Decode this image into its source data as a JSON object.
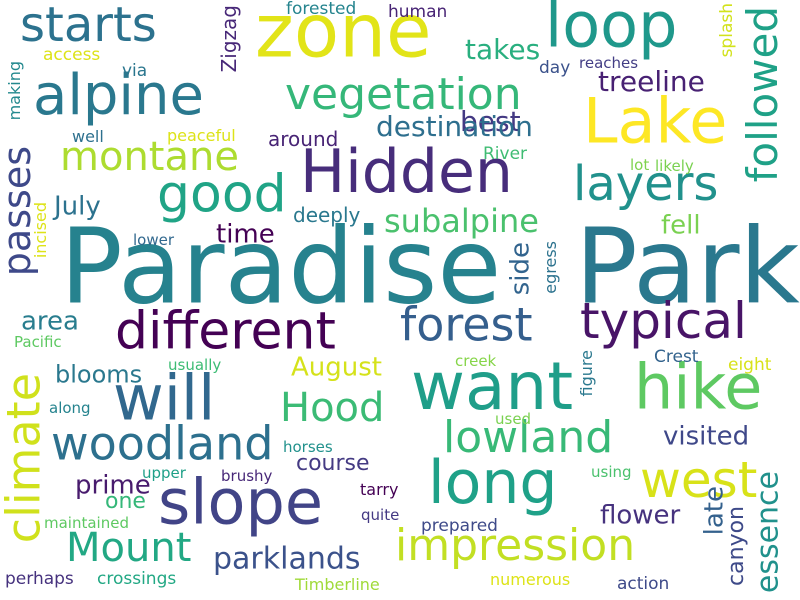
{
  "words": [
    {
      "text": "Paradise",
      "color": "#26828e"
    },
    {
      "text": "Park",
      "color": "#2a788e"
    },
    {
      "text": "zone",
      "color": "#e2e418"
    },
    {
      "text": "loop",
      "color": "#1f988b"
    },
    {
      "text": "alpine",
      "color": "#2a788e"
    },
    {
      "text": "Lake",
      "color": "#fde725"
    },
    {
      "text": "Hidden",
      "color": "#472d7b"
    },
    {
      "text": "starts",
      "color": "#2c728e"
    },
    {
      "text": "vegetation",
      "color": "#35b779"
    },
    {
      "text": "followed",
      "color": "#1fa187"
    },
    {
      "text": "montane",
      "color": "#addc30"
    },
    {
      "text": "good",
      "color": "#20a486"
    },
    {
      "text": "layers",
      "color": "#21918c"
    },
    {
      "text": "passes",
      "color": "#3e4989"
    },
    {
      "text": "different",
      "color": "#440154"
    },
    {
      "text": "typical",
      "color": "#481467"
    },
    {
      "text": "forest",
      "color": "#355f8d"
    },
    {
      "text": "want",
      "color": "#1f9e89"
    },
    {
      "text": "hike",
      "color": "#5ec962"
    },
    {
      "text": "will",
      "color": "#31688e"
    },
    {
      "text": "climate",
      "color": "#d0e11c"
    },
    {
      "text": "Hood",
      "color": "#3bbb75"
    },
    {
      "text": "lowland",
      "color": "#38b977"
    },
    {
      "text": "woodland",
      "color": "#2d708e"
    },
    {
      "text": "long",
      "color": "#1fa188"
    },
    {
      "text": "west",
      "color": "#d8e219"
    },
    {
      "text": "slope",
      "color": "#414487"
    },
    {
      "text": "Mount",
      "color": "#22a884"
    },
    {
      "text": "impression",
      "color": "#c2df23"
    },
    {
      "text": "parklands",
      "color": "#3b528b"
    },
    {
      "text": "essence",
      "color": "#21918c"
    },
    {
      "text": "best",
      "color": "#443983"
    },
    {
      "text": "takes",
      "color": "#29af7f"
    },
    {
      "text": "treeline",
      "color": "#482173"
    },
    {
      "text": "destination",
      "color": "#2e6f8e"
    },
    {
      "text": "July",
      "color": "#2c728e"
    },
    {
      "text": "time",
      "color": "#440154"
    },
    {
      "text": "subalpine",
      "color": "#4ac16d"
    },
    {
      "text": "fell",
      "color": "#7ad151"
    },
    {
      "text": "area",
      "color": "#287d8e"
    },
    {
      "text": "side",
      "color": "#32648e"
    },
    {
      "text": "blooms",
      "color": "#2a788e"
    },
    {
      "text": "August",
      "color": "#d5e21a"
    },
    {
      "text": "visited",
      "color": "#3f4889"
    },
    {
      "text": "course",
      "color": "#443a83"
    },
    {
      "text": "prime",
      "color": "#481b6d"
    },
    {
      "text": "one",
      "color": "#35b779"
    },
    {
      "text": "flower",
      "color": "#46327e"
    },
    {
      "text": "late",
      "color": "#34618d"
    },
    {
      "text": "canyon",
      "color": "#3e4a89"
    },
    {
      "text": "around",
      "color": "#482475"
    },
    {
      "text": "deeply",
      "color": "#2a788e"
    },
    {
      "text": "Zigzag",
      "color": "#482878"
    },
    {
      "text": "forested",
      "color": "#25848e"
    },
    {
      "text": "human",
      "color": "#482475"
    },
    {
      "text": "access",
      "color": "#dde318"
    },
    {
      "text": "via",
      "color": "#2a768e"
    },
    {
      "text": "day",
      "color": "#3b528b"
    },
    {
      "text": "reaches",
      "color": "#433e85"
    },
    {
      "text": "splash",
      "color": "#d2e21b"
    },
    {
      "text": "making",
      "color": "#23898e"
    },
    {
      "text": "well",
      "color": "#2d708e"
    },
    {
      "text": "peaceful",
      "color": "#dde318"
    },
    {
      "text": "River",
      "color": "#3fbc73"
    },
    {
      "text": "lot",
      "color": "#7fd34e"
    },
    {
      "text": "likely",
      "color": "#7ad151"
    },
    {
      "text": "incised",
      "color": "#dde318"
    },
    {
      "text": "lower",
      "color": "#31688e"
    },
    {
      "text": "egress",
      "color": "#2c728e"
    },
    {
      "text": "Pacific",
      "color": "#5ec962"
    },
    {
      "text": "usually",
      "color": "#3dbc74"
    },
    {
      "text": "creek",
      "color": "#86d549"
    },
    {
      "text": "Crest",
      "color": "#33638d"
    },
    {
      "text": "eight",
      "color": "#d8e219"
    },
    {
      "text": "figure",
      "color": "#2a788e"
    },
    {
      "text": "along",
      "color": "#25838e"
    },
    {
      "text": "used",
      "color": "#7ad151"
    },
    {
      "text": "horses",
      "color": "#21918c"
    },
    {
      "text": "upper",
      "color": "#1fa088"
    },
    {
      "text": "brushy",
      "color": "#482878"
    },
    {
      "text": "using",
      "color": "#4ac16d"
    },
    {
      "text": "tarry",
      "color": "#440154"
    },
    {
      "text": "quite",
      "color": "#443983"
    },
    {
      "text": "maintained",
      "color": "#5ec962"
    },
    {
      "text": "prepared",
      "color": "#3e4a89"
    },
    {
      "text": "perhaps",
      "color": "#46327e"
    },
    {
      "text": "crossings",
      "color": "#22a884"
    },
    {
      "text": "Timberline",
      "color": "#a0da39"
    },
    {
      "text": "numerous",
      "color": "#dde318"
    },
    {
      "text": "action",
      "color": "#3e4a89"
    }
  ]
}
